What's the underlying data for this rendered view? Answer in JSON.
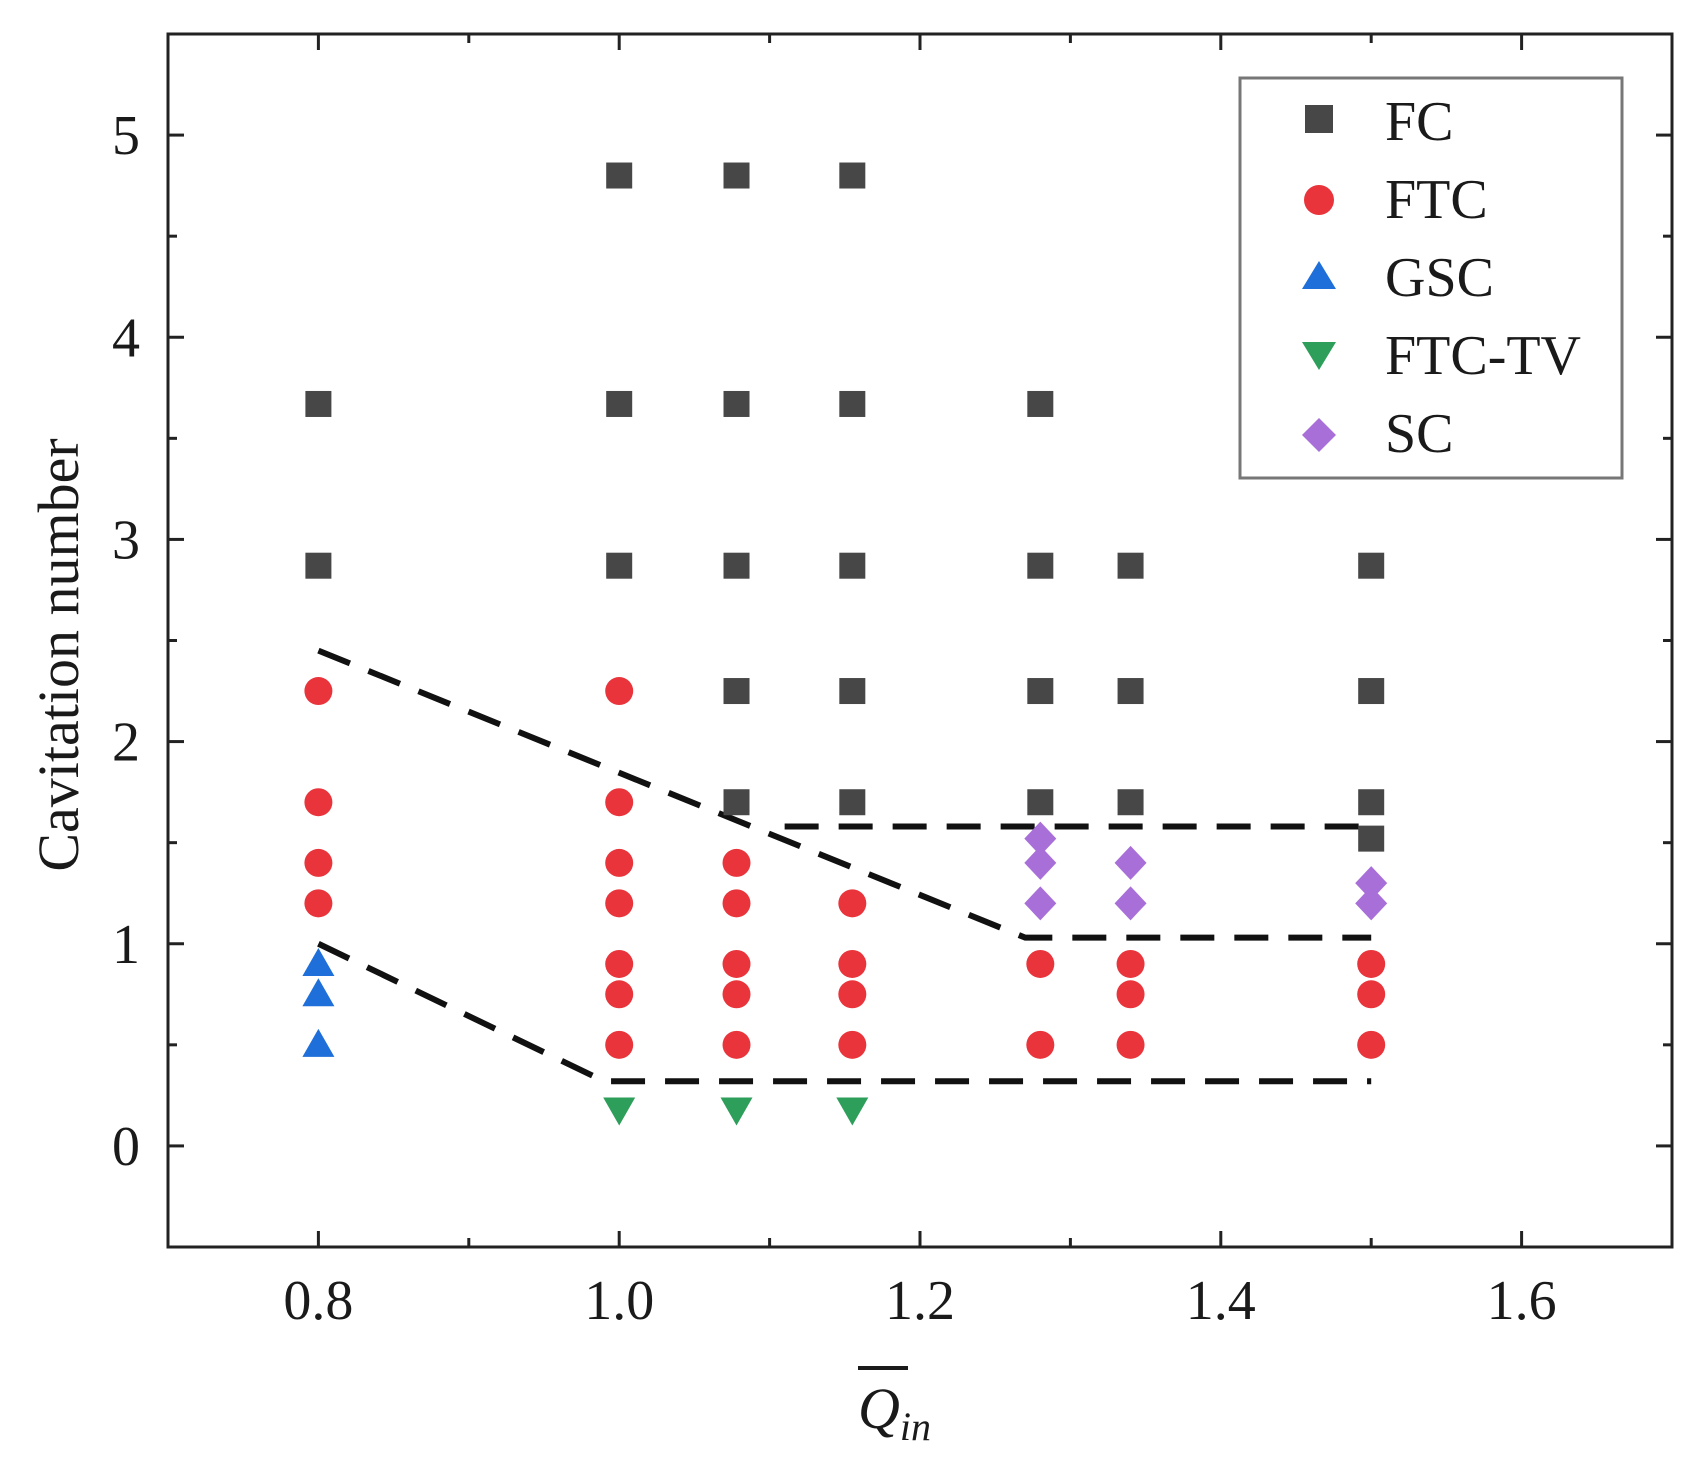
{
  "chart_data": {
    "type": "scatter",
    "title": "",
    "xlabel": "Q",
    "xlabel_subscript": "in",
    "ylabel": "Cavitation number",
    "xlim": [
      0.7,
      1.7
    ],
    "ylim": [
      -0.5,
      5.5
    ],
    "xticks": [
      0.8,
      1.0,
      1.2,
      1.4,
      1.6
    ],
    "xtick_labels": [
      "0.8",
      "1.0",
      "1.2",
      "1.4",
      "1.6"
    ],
    "yticks": [
      0,
      1,
      2,
      3,
      4,
      5
    ],
    "ytick_labels": [
      "0",
      "1",
      "2",
      "3",
      "4",
      "5"
    ],
    "x_minor_step": 0.1,
    "y_minor_step": 0.5,
    "grid": false,
    "legend_position": "top-right",
    "series": [
      {
        "name": "FC",
        "marker": "square",
        "color": "#474747",
        "x": [
          0.8,
          0.8,
          1.0,
          1.0,
          1.0,
          1.078,
          1.078,
          1.078,
          1.078,
          1.078,
          1.155,
          1.155,
          1.155,
          1.155,
          1.155,
          1.28,
          1.28,
          1.28,
          1.28,
          1.34,
          1.34,
          1.34,
          1.5,
          1.5,
          1.5,
          1.5
        ],
        "y": [
          3.67,
          2.87,
          4.8,
          3.67,
          2.87,
          4.8,
          3.67,
          2.87,
          2.25,
          1.7,
          4.8,
          3.67,
          2.87,
          2.25,
          1.7,
          3.67,
          2.87,
          2.25,
          1.7,
          2.87,
          2.25,
          1.7,
          2.87,
          2.25,
          1.7,
          1.52
        ]
      },
      {
        "name": "FTC",
        "marker": "circle",
        "color": "#e8343a",
        "x": [
          0.8,
          0.8,
          0.8,
          0.8,
          1.0,
          1.0,
          1.0,
          1.0,
          1.0,
          1.0,
          1.0,
          1.078,
          1.078,
          1.078,
          1.078,
          1.078,
          1.155,
          1.155,
          1.155,
          1.155,
          1.28,
          1.28,
          1.34,
          1.34,
          1.34,
          1.5,
          1.5,
          1.5
        ],
        "y": [
          2.25,
          1.7,
          1.4,
          1.2,
          2.25,
          1.7,
          1.4,
          1.2,
          0.9,
          0.75,
          0.5,
          1.4,
          1.2,
          0.9,
          0.75,
          0.5,
          1.2,
          0.9,
          0.75,
          0.5,
          0.9,
          0.5,
          0.9,
          0.75,
          0.5,
          0.9,
          0.75,
          0.5
        ]
      },
      {
        "name": "GSC",
        "marker": "triangle-up",
        "color": "#1e6fd9",
        "x": [
          0.8,
          0.8,
          0.8
        ],
        "y": [
          0.9,
          0.75,
          0.5
        ]
      },
      {
        "name": "FTC-TV",
        "marker": "triangle-down",
        "color": "#2e9e5b",
        "x": [
          1.0,
          1.078,
          1.155
        ],
        "y": [
          0.18,
          0.18,
          0.18
        ]
      },
      {
        "name": "SC",
        "marker": "diamond",
        "color": "#a86fd8",
        "x": [
          1.28,
          1.28,
          1.28,
          1.34,
          1.34,
          1.5,
          1.5
        ],
        "y": [
          1.52,
          1.4,
          1.2,
          1.4,
          1.2,
          1.3,
          1.2
        ]
      }
    ],
    "boundary_lines": [
      {
        "name": "upper-boundary",
        "style": "dashed",
        "x": [
          0.8,
          1.27,
          1.5
        ],
        "y": [
          2.45,
          1.03,
          1.03
        ]
      },
      {
        "name": "upper-plateau-boundary",
        "style": "dashed",
        "x": [
          1.11,
          1.5
        ],
        "y": [
          1.58,
          1.58
        ]
      },
      {
        "name": "lower-boundary",
        "style": "dashed",
        "x": [
          0.8,
          0.99,
          1.5
        ],
        "y": [
          1.0,
          0.32,
          0.32
        ]
      }
    ]
  }
}
